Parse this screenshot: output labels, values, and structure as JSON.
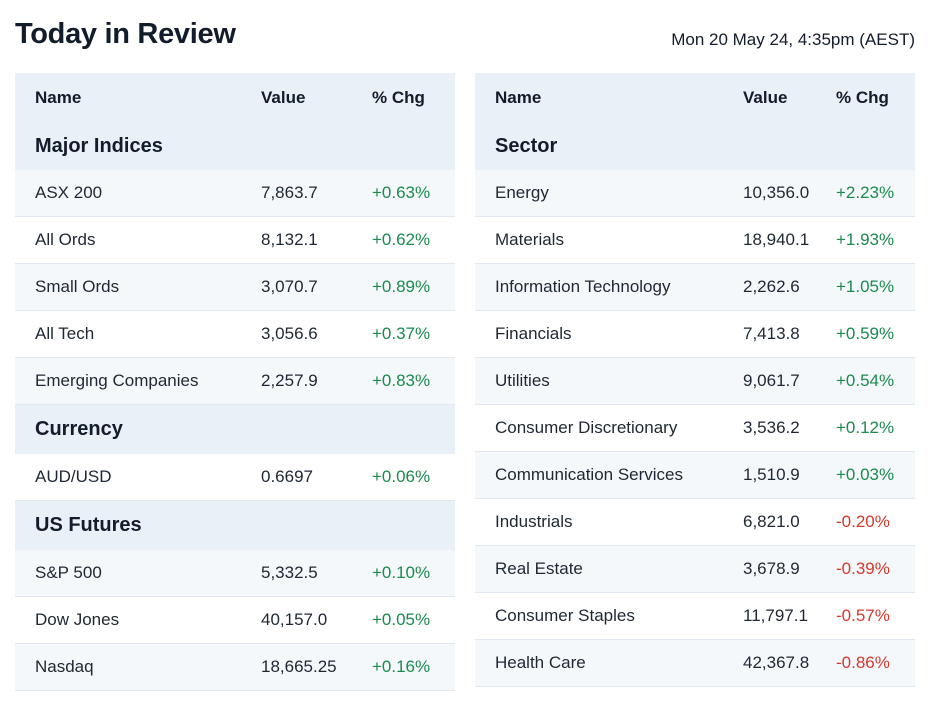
{
  "header": {
    "title": "Today in Review",
    "timestamp": "Mon 20 May 24, 4:35pm (AEST)"
  },
  "columns": {
    "name": "Name",
    "value": "Value",
    "chg": "% Chg"
  },
  "left": {
    "major_indices": {
      "title": "Major Indices",
      "rows": [
        {
          "name": "ASX 200",
          "value": "7,863.7",
          "chg": "+0.63%"
        },
        {
          "name": "All Ords",
          "value": "8,132.1",
          "chg": "+0.62%"
        },
        {
          "name": "Small Ords",
          "value": "3,070.7",
          "chg": "+0.89%"
        },
        {
          "name": "All Tech",
          "value": "3,056.6",
          "chg": "+0.37%"
        },
        {
          "name": "Emerging Companies",
          "value": "2,257.9",
          "chg": "+0.83%"
        }
      ]
    },
    "currency": {
      "title": "Currency",
      "rows": [
        {
          "name": "AUD/USD",
          "value": "0.6697",
          "chg": "+0.06%"
        }
      ]
    },
    "us_futures": {
      "title": "US Futures",
      "rows": [
        {
          "name": "S&P 500",
          "value": "5,332.5",
          "chg": "+0.10%"
        },
        {
          "name": "Dow Jones",
          "value": "40,157.0",
          "chg": "+0.05%"
        },
        {
          "name": "Nasdaq",
          "value": "18,665.25",
          "chg": "+0.16%"
        }
      ]
    }
  },
  "right": {
    "sector": {
      "title": "Sector",
      "rows": [
        {
          "name": "Energy",
          "value": "10,356.0",
          "chg": "+2.23%"
        },
        {
          "name": "Materials",
          "value": "18,940.1",
          "chg": "+1.93%"
        },
        {
          "name": "Information Technology",
          "value": "2,262.6",
          "chg": "+1.05%"
        },
        {
          "name": "Financials",
          "value": "7,413.8",
          "chg": "+0.59%"
        },
        {
          "name": "Utilities",
          "value": "9,061.7",
          "chg": "+0.54%"
        },
        {
          "name": "Consumer Discretionary",
          "value": "3,536.2",
          "chg": "+0.12%"
        },
        {
          "name": "Communication Services",
          "value": "1,510.9",
          "chg": "+0.03%"
        },
        {
          "name": "Industrials",
          "value": "6,821.0",
          "chg": "-0.20%"
        },
        {
          "name": "Real Estate",
          "value": "3,678.9",
          "chg": "-0.39%"
        },
        {
          "name": "Consumer Staples",
          "value": "11,797.1",
          "chg": "-0.57%"
        },
        {
          "name": "Health Care",
          "value": "42,367.8",
          "chg": "-0.86%"
        }
      ]
    }
  },
  "colors": {
    "positive": "#1b8a4f",
    "negative": "#d6382b",
    "header_bg": "#e9f0f8",
    "row_alt_bg": "#f5f8fb"
  }
}
